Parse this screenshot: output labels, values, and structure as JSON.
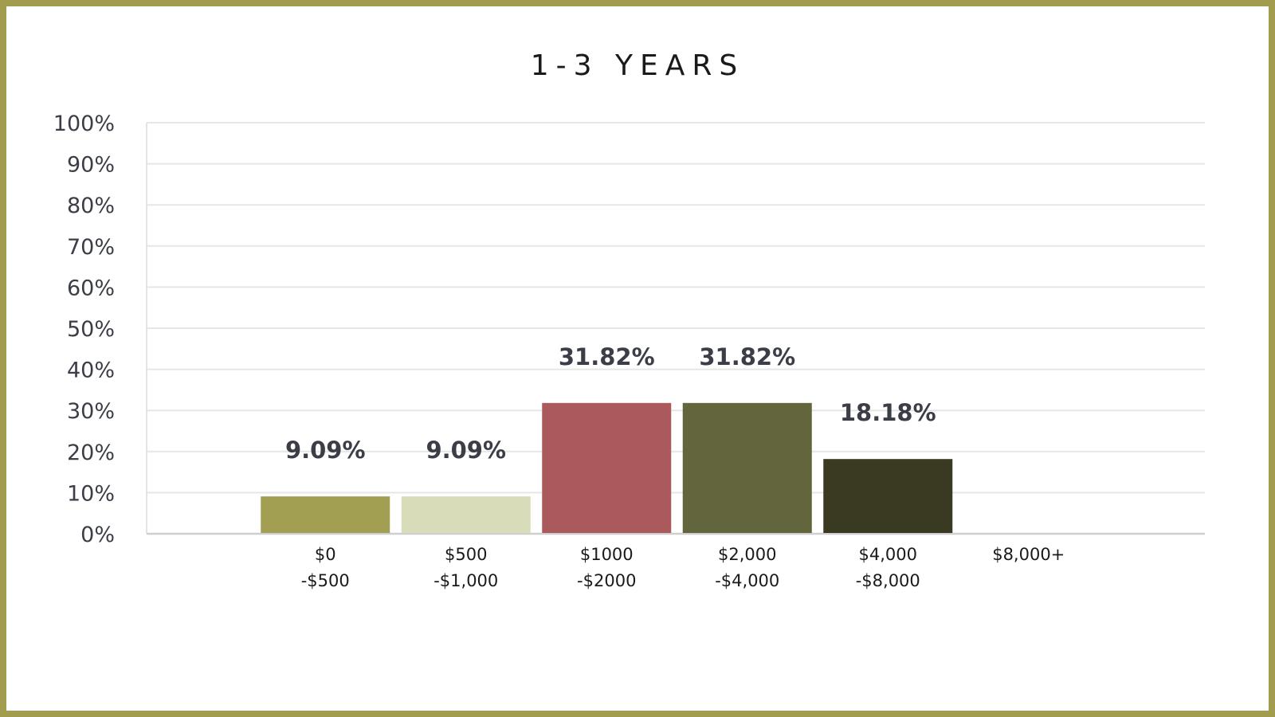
{
  "chart_data": {
    "type": "bar",
    "title": "1-3 YEARS",
    "categories": [
      [
        "$0",
        "-$500"
      ],
      [
        "$500",
        "-$1,000"
      ],
      [
        "$1000",
        "-$2000"
      ],
      [
        "$2,000",
        "-$4,000"
      ],
      [
        "$4,000",
        "-$8,000"
      ],
      [
        "$8,000+"
      ]
    ],
    "values": [
      9.09,
      9.09,
      31.82,
      31.82,
      18.18,
      0
    ],
    "data_labels": [
      "9.09%",
      "9.09%",
      "31.82%",
      "31.82%",
      "18.18%",
      ""
    ],
    "bar_colors": [
      "#a29f52",
      "#d9dcb9",
      "#aa5a5c",
      "#63653c",
      "#393a21",
      "#393a21"
    ],
    "ylim": [
      0,
      100
    ],
    "yticks": [
      0,
      10,
      20,
      30,
      40,
      50,
      60,
      70,
      80,
      90,
      100
    ],
    "ytick_labels": [
      "0%",
      "10%",
      "20%",
      "30%",
      "40%",
      "50%",
      "60%",
      "70%",
      "80%",
      "90%",
      "100%"
    ],
    "grid": true,
    "xlabel": "",
    "ylabel": ""
  },
  "frame_color": "#a29d4e"
}
